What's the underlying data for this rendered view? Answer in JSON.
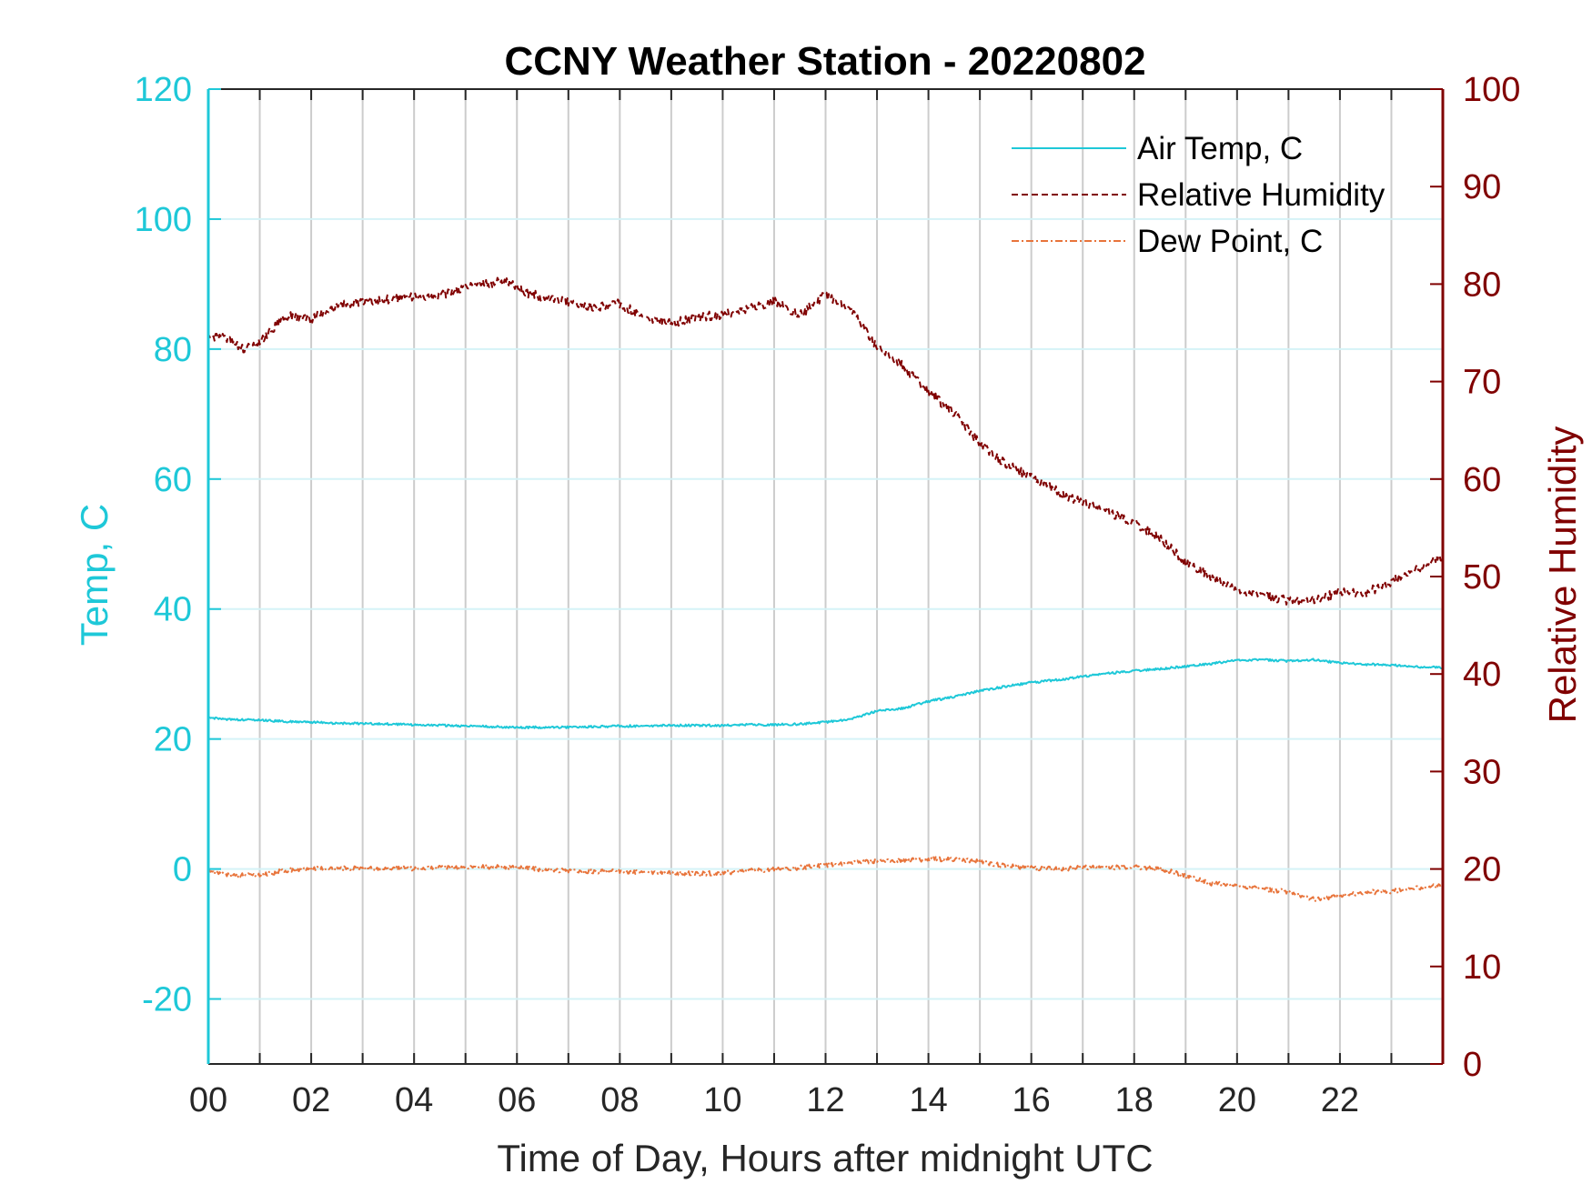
{
  "chart_data": {
    "type": "line",
    "title": "CCNY Weather Station - 20220802",
    "xlabel": "Time of Day, Hours after midnight UTC",
    "ylabel_left": "Temp, C",
    "ylabel_right": "Relative Humidity",
    "xlim": [
      0,
      24
    ],
    "ylim_left": [
      -30,
      120
    ],
    "ylim_right": [
      0,
      100
    ],
    "x_ticks": [
      0,
      2,
      4,
      6,
      8,
      10,
      12,
      14,
      16,
      18,
      20,
      22
    ],
    "x_tick_labels": [
      "00",
      "02",
      "04",
      "06",
      "08",
      "10",
      "12",
      "14",
      "16",
      "18",
      "20",
      "22"
    ],
    "y_left_ticks": [
      -20,
      0,
      20,
      40,
      60,
      80,
      100,
      120
    ],
    "y_left_tick_labels": [
      "-20",
      "0",
      "20",
      "40",
      "60",
      "80",
      "100",
      "120"
    ],
    "y_right_ticks": [
      0,
      10,
      20,
      30,
      40,
      50,
      60,
      70,
      80,
      90,
      100
    ],
    "y_right_tick_labels": [
      "0",
      "10",
      "20",
      "30",
      "40",
      "50",
      "60",
      "70",
      "80",
      "90",
      "100"
    ],
    "grid": {
      "vertical_every_hour": true,
      "horizontal_at_left_ticks": true
    },
    "legend_position": "top-right",
    "colors": {
      "air_temp": "#1ec8d8",
      "humidity": "#800000",
      "dew_point": "#e8743b",
      "left_axis": "#1ec8d8",
      "right_axis": "#800000",
      "grid_vertical": "#cccccc",
      "grid_horizontal": "#d5f3f7"
    },
    "series": [
      {
        "name": "Air Temp, C",
        "axis": "left",
        "style": "solid",
        "x": [
          0,
          0.5,
          1,
          1.5,
          2,
          2.5,
          3,
          3.5,
          4,
          4.5,
          5,
          5.5,
          6,
          6.5,
          7,
          7.5,
          8,
          8.5,
          9,
          9.5,
          10,
          10.5,
          11,
          11.5,
          12,
          12.5,
          13,
          13.5,
          14,
          14.5,
          15,
          15.5,
          16,
          16.5,
          17,
          17.5,
          18,
          18.5,
          19,
          19.5,
          20,
          20.5,
          21,
          21.5,
          22,
          22.5,
          23,
          23.5,
          24
        ],
        "values": [
          23.2,
          23.0,
          22.9,
          22.7,
          22.6,
          22.4,
          22.4,
          22.3,
          22.2,
          22.1,
          22.0,
          21.9,
          21.8,
          21.8,
          21.8,
          21.9,
          22.0,
          22.0,
          22.1,
          22.1,
          22.1,
          22.2,
          22.2,
          22.3,
          22.6,
          23.1,
          24.3,
          24.7,
          25.8,
          26.5,
          27.4,
          28.1,
          28.7,
          29.1,
          29.6,
          30.1,
          30.5,
          30.8,
          31.2,
          31.6,
          32.1,
          32.2,
          32.0,
          32.2,
          31.7,
          31.5,
          31.4,
          31.1,
          31.0
        ]
      },
      {
        "name": "Relative Humidity",
        "axis": "right",
        "style": "dashed",
        "x": [
          0,
          0.3,
          0.7,
          1,
          1.5,
          2,
          2.5,
          3,
          3.5,
          4,
          4.4,
          5,
          5.5,
          5.8,
          6.2,
          6.5,
          7,
          7.5,
          8,
          8.5,
          9,
          9.5,
          10,
          10.5,
          11,
          11.5,
          12,
          12.5,
          13,
          13.5,
          14,
          14.5,
          15,
          15.5,
          16,
          16.5,
          17,
          17.5,
          18,
          18.5,
          19,
          19.5,
          20,
          20.5,
          21,
          21.5,
          22,
          22.5,
          23,
          23.5,
          24
        ],
        "values": [
          74.2,
          74.7,
          73.3,
          74.0,
          76.8,
          76.4,
          77.7,
          78.3,
          78.4,
          78.8,
          78.6,
          79.7,
          80.1,
          80.4,
          79.1,
          78.7,
          78.1,
          77.6,
          78.0,
          76.5,
          76.0,
          76.6,
          76.9,
          77.4,
          78.3,
          76.8,
          78.9,
          77.4,
          73.5,
          71.6,
          68.9,
          66.8,
          63.6,
          61.6,
          60.2,
          58.8,
          57.5,
          56.6,
          55.5,
          54.0,
          51.5,
          50.0,
          48.5,
          48.1,
          47.5,
          47.6,
          48.4,
          48.3,
          49.5,
          50.8,
          52.1
        ]
      },
      {
        "name": "Dew Point, C",
        "axis": "left",
        "style": "dash-dot",
        "x": [
          0,
          0.5,
          1,
          1.5,
          2,
          2.5,
          3,
          3.5,
          4,
          4.5,
          5,
          5.5,
          6,
          6.5,
          7,
          7.5,
          8,
          8.5,
          9,
          9.5,
          10,
          10.5,
          11,
          11.5,
          12,
          12.5,
          13,
          13.5,
          14,
          14.5,
          15,
          15.5,
          16,
          16.5,
          17,
          17.5,
          18,
          18.5,
          19,
          19.5,
          20,
          20.5,
          21,
          21.5,
          22,
          22.5,
          23,
          23.5,
          24
        ],
        "values": [
          -0.5,
          -0.9,
          -1.0,
          -0.2,
          0.0,
          0.1,
          0.1,
          0.1,
          0.1,
          0.2,
          0.2,
          0.3,
          0.3,
          -0.1,
          -0.3,
          -0.4,
          -0.3,
          -0.5,
          -0.6,
          -0.7,
          -0.6,
          -0.3,
          0.0,
          0.2,
          0.6,
          1.0,
          1.2,
          1.3,
          1.5,
          1.5,
          1.1,
          0.5,
          0.2,
          0.0,
          0.2,
          0.2,
          0.3,
          0.1,
          -1.0,
          -2.2,
          -2.6,
          -3.1,
          -3.5,
          -4.7,
          -4.1,
          -3.6,
          -3.4,
          -2.9,
          -2.5
        ]
      }
    ]
  }
}
